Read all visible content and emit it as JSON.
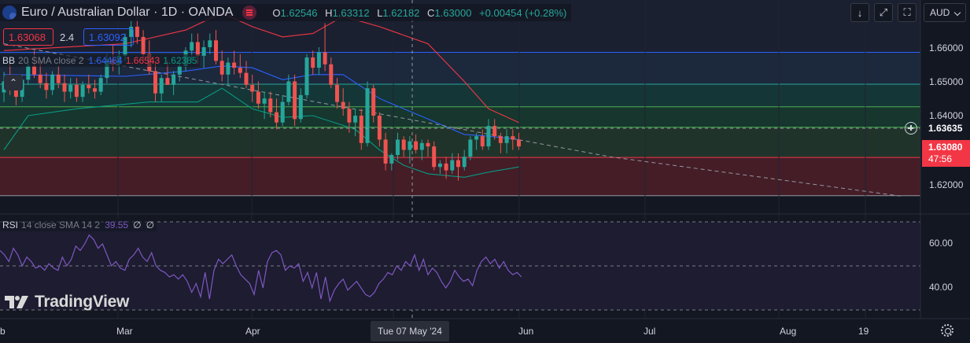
{
  "header": {
    "symbol_title": "Euro / Australian Dollar · 1D · OANDA",
    "ohlc": {
      "o_label": "O",
      "o": "1.62546",
      "h_label": "H",
      "h": "1.63312",
      "l_label": "L",
      "l": "1.62182",
      "c_label": "C",
      "c": "1.63000",
      "change": "+0.00454 (+0.28%)"
    }
  },
  "quote": {
    "sell": "1.63068",
    "spread": "2.4",
    "buy": "1.63092"
  },
  "indicators": {
    "bb": {
      "name": "BB",
      "params": "20 SMA close 2",
      "basis": "1.64464",
      "upper": "1.66543",
      "lower": "1.62385"
    },
    "rsi": {
      "name": "RSI",
      "params": "14 close SMA 14 2",
      "value": "39.55",
      "v2": "∅",
      "v3": "∅"
    }
  },
  "toolbar": {
    "currency": "AUD"
  },
  "price_axis": {
    "labels": [
      "1.66000",
      "1.65000",
      "1.64000",
      "1.62000"
    ],
    "crosshair_price": "1.63635",
    "last_price": "1.63080",
    "countdown": "47:56"
  },
  "rsi_axis": {
    "labels": [
      "60.00",
      "40.00"
    ]
  },
  "time_axis": {
    "labels": [
      "b",
      "Mar",
      "Apr",
      "Jun",
      "Jul",
      "Aug",
      "19"
    ],
    "crosshair_date": "Tue 07 May '24"
  },
  "branding": {
    "logo_text": "TradingView"
  },
  "colors": {
    "up": "#26a69a",
    "down": "#ef5350",
    "bb_basis": "#2962ff",
    "bb_band": "#f23645",
    "bb_lower": "#089981",
    "rsi": "#7e57c2"
  },
  "chart_data": {
    "type": "candlestick",
    "price_ticks": [
      1.66,
      1.65,
      1.64,
      1.62
    ],
    "horizontal_levels": [
      1.6585,
      1.6492,
      1.6426,
      1.6366,
      1.6278,
      1.6166
    ],
    "candles": [
      [
        1.6468,
        1.6528,
        1.644,
        1.65
      ],
      [
        1.65,
        1.656,
        1.646,
        1.648
      ],
      [
        1.648,
        1.652,
        1.643,
        1.6455
      ],
      [
        1.6455,
        1.652,
        1.644,
        1.6505
      ],
      [
        1.6505,
        1.656,
        1.649,
        1.6545
      ],
      [
        1.6545,
        1.659,
        1.651,
        1.652
      ],
      [
        1.652,
        1.656,
        1.648,
        1.6495
      ],
      [
        1.6495,
        1.6525,
        1.645,
        1.6475
      ],
      [
        1.6475,
        1.653,
        1.646,
        1.652
      ],
      [
        1.652,
        1.6545,
        1.648,
        1.6495
      ],
      [
        1.6495,
        1.652,
        1.644,
        1.647
      ],
      [
        1.647,
        1.651,
        1.645,
        1.649
      ],
      [
        1.649,
        1.651,
        1.644,
        1.6455
      ],
      [
        1.6455,
        1.65,
        1.644,
        1.649
      ],
      [
        1.649,
        1.652,
        1.6465,
        1.648
      ],
      [
        1.648,
        1.6505,
        1.645,
        1.647
      ],
      [
        1.647,
        1.652,
        1.646,
        1.651
      ],
      [
        1.651,
        1.658,
        1.6495,
        1.6565
      ],
      [
        1.6565,
        1.6605,
        1.653,
        1.655
      ],
      [
        1.655,
        1.659,
        1.652,
        1.6575
      ],
      [
        1.6575,
        1.664,
        1.656,
        1.663
      ],
      [
        1.663,
        1.668,
        1.66,
        1.666
      ],
      [
        1.666,
        1.669,
        1.661,
        1.663
      ],
      [
        1.663,
        1.665,
        1.656,
        1.658
      ],
      [
        1.658,
        1.662,
        1.652,
        1.653
      ],
      [
        1.653,
        1.656,
        1.644,
        1.6465
      ],
      [
        1.6465,
        1.652,
        1.644,
        1.651
      ],
      [
        1.651,
        1.656,
        1.649,
        1.649
      ],
      [
        1.649,
        1.653,
        1.646,
        1.652
      ],
      [
        1.652,
        1.656,
        1.65,
        1.6545
      ],
      [
        1.6545,
        1.66,
        1.653,
        1.659
      ],
      [
        1.659,
        1.664,
        1.656,
        1.6615
      ],
      [
        1.6615,
        1.664,
        1.655,
        1.6575
      ],
      [
        1.6575,
        1.662,
        1.654,
        1.66
      ],
      [
        1.66,
        1.664,
        1.658,
        1.662
      ],
      [
        1.662,
        1.665,
        1.655,
        1.656
      ],
      [
        1.656,
        1.659,
        1.65,
        1.652
      ],
      [
        1.652,
        1.657,
        1.649,
        1.6555
      ],
      [
        1.6555,
        1.659,
        1.652,
        1.654
      ],
      [
        1.654,
        1.658,
        1.651,
        1.6525
      ],
      [
        1.6525,
        1.656,
        1.648,
        1.649
      ],
      [
        1.649,
        1.652,
        1.644,
        1.647
      ],
      [
        1.647,
        1.65,
        1.642,
        1.6435
      ],
      [
        1.6435,
        1.647,
        1.639,
        1.645
      ],
      [
        1.645,
        1.647,
        1.6395,
        1.641
      ],
      [
        1.641,
        1.645,
        1.636,
        1.638
      ],
      [
        1.638,
        1.646,
        1.637,
        1.644
      ],
      [
        1.644,
        1.652,
        1.643,
        1.65
      ],
      [
        1.65,
        1.652,
        1.637,
        1.639
      ],
      [
        1.639,
        1.648,
        1.638,
        1.646
      ],
      [
        1.646,
        1.658,
        1.645,
        1.657
      ],
      [
        1.657,
        1.659,
        1.652,
        1.654
      ],
      [
        1.654,
        1.66,
        1.652,
        1.6585
      ],
      [
        1.6585,
        1.667,
        1.653,
        1.655
      ],
      [
        1.655,
        1.657,
        1.648,
        1.649
      ],
      [
        1.649,
        1.651,
        1.642,
        1.644
      ],
      [
        1.644,
        1.648,
        1.64,
        1.642
      ],
      [
        1.642,
        1.644,
        1.635,
        1.638
      ],
      [
        1.638,
        1.642,
        1.634,
        1.64
      ],
      [
        1.64,
        1.642,
        1.63,
        1.632
      ],
      [
        1.632,
        1.65,
        1.631,
        1.648
      ],
      [
        1.648,
        1.649,
        1.638,
        1.64
      ],
      [
        1.64,
        1.641,
        1.631,
        1.633
      ],
      [
        1.633,
        1.635,
        1.624,
        1.626
      ],
      [
        1.626,
        1.629,
        1.624,
        1.6285
      ],
      [
        1.6285,
        1.635,
        1.627,
        1.633
      ],
      [
        1.633,
        1.634,
        1.628,
        1.63
      ],
      [
        1.63,
        1.634,
        1.626,
        1.6325
      ],
      [
        1.6325,
        1.6345,
        1.629,
        1.63
      ],
      [
        1.63,
        1.633,
        1.627,
        1.632
      ],
      [
        1.632,
        1.633,
        1.628,
        1.631
      ],
      [
        1.631,
        1.6325,
        1.624,
        1.625
      ],
      [
        1.625,
        1.627,
        1.623,
        1.626
      ],
      [
        1.626,
        1.628,
        1.6215,
        1.624
      ],
      [
        1.624,
        1.629,
        1.623,
        1.627
      ],
      [
        1.627,
        1.629,
        1.621,
        1.625
      ],
      [
        1.625,
        1.63,
        1.624,
        1.628
      ],
      [
        1.628,
        1.634,
        1.627,
        1.633
      ],
      [
        1.633,
        1.635,
        1.63,
        1.634
      ],
      [
        1.634,
        1.636,
        1.63,
        1.631
      ],
      [
        1.631,
        1.639,
        1.63,
        1.637
      ],
      [
        1.637,
        1.639,
        1.633,
        1.634
      ],
      [
        1.634,
        1.635,
        1.629,
        1.632
      ],
      [
        1.632,
        1.636,
        1.629,
        1.634
      ],
      [
        1.634,
        1.636,
        1.63,
        1.633
      ],
      [
        1.633,
        1.635,
        1.63,
        1.631
      ]
    ],
    "bb_upper_points": [
      [
        0,
        1.659
      ],
      [
        20,
        1.661
      ],
      [
        30,
        1.665
      ],
      [
        36,
        1.67
      ],
      [
        41,
        1.666
      ],
      [
        46,
        1.663
      ],
      [
        51,
        1.664
      ],
      [
        56,
        1.669
      ],
      [
        62,
        1.666
      ],
      [
        70,
        1.661
      ],
      [
        76,
        1.65
      ],
      [
        80,
        1.642
      ],
      [
        85,
        1.638
      ]
    ],
    "bb_basis_points": [
      [
        0,
        1.652
      ],
      [
        20,
        1.6515
      ],
      [
        30,
        1.653
      ],
      [
        36,
        1.6545
      ],
      [
        41,
        1.654
      ],
      [
        46,
        1.6505
      ],
      [
        51,
        1.652
      ],
      [
        56,
        1.652
      ],
      [
        62,
        1.645
      ],
      [
        70,
        1.639
      ],
      [
        76,
        1.6345
      ],
      [
        80,
        1.634
      ],
      [
        85,
        1.633
      ]
    ],
    "bb_lower_points": [
      [
        0,
        1.63
      ],
      [
        4,
        1.64
      ],
      [
        12,
        1.642
      ],
      [
        18,
        1.643
      ],
      [
        24,
        1.644
      ],
      [
        32,
        1.644
      ],
      [
        36,
        1.648
      ],
      [
        41,
        1.642
      ],
      [
        46,
        1.6395
      ],
      [
        51,
        1.64
      ],
      [
        58,
        1.636
      ],
      [
        62,
        1.63
      ],
      [
        66,
        1.6255
      ],
      [
        70,
        1.623
      ],
      [
        76,
        1.622
      ],
      [
        80,
        1.6235
      ],
      [
        85,
        1.625
      ]
    ],
    "trendline": [
      [
        0,
        1.661
      ],
      [
        100,
        1.628
      ],
      [
        148,
        1.6165
      ]
    ],
    "rsi_levels": [
      70,
      50,
      30
    ],
    "rsi_ticks": [
      60,
      40
    ],
    "rsi_values": [
      57,
      55,
      52,
      58,
      55,
      50,
      54,
      52,
      49,
      50,
      48,
      51,
      49,
      48,
      54,
      50,
      53,
      59,
      57,
      60,
      64,
      62,
      58,
      60,
      55,
      50,
      52,
      49,
      48,
      53,
      55,
      58,
      54,
      52,
      56,
      50,
      48,
      47,
      45,
      46,
      44,
      46,
      43,
      38,
      42,
      36,
      47,
      35,
      48,
      53,
      51,
      53,
      55,
      50,
      46,
      44,
      42,
      37,
      48,
      40,
      52,
      56,
      57,
      55,
      48,
      50,
      49,
      51,
      43,
      47,
      40,
      47,
      35,
      45,
      34,
      39,
      42,
      44,
      39,
      41,
      43,
      40,
      37,
      36,
      38,
      42,
      44,
      47,
      46,
      50,
      48,
      52,
      50,
      55,
      48,
      53,
      46,
      49,
      47,
      43,
      40,
      43,
      48,
      45,
      43,
      44,
      41,
      48,
      52,
      54,
      51,
      53,
      49,
      52,
      48,
      46,
      47,
      45
    ]
  }
}
